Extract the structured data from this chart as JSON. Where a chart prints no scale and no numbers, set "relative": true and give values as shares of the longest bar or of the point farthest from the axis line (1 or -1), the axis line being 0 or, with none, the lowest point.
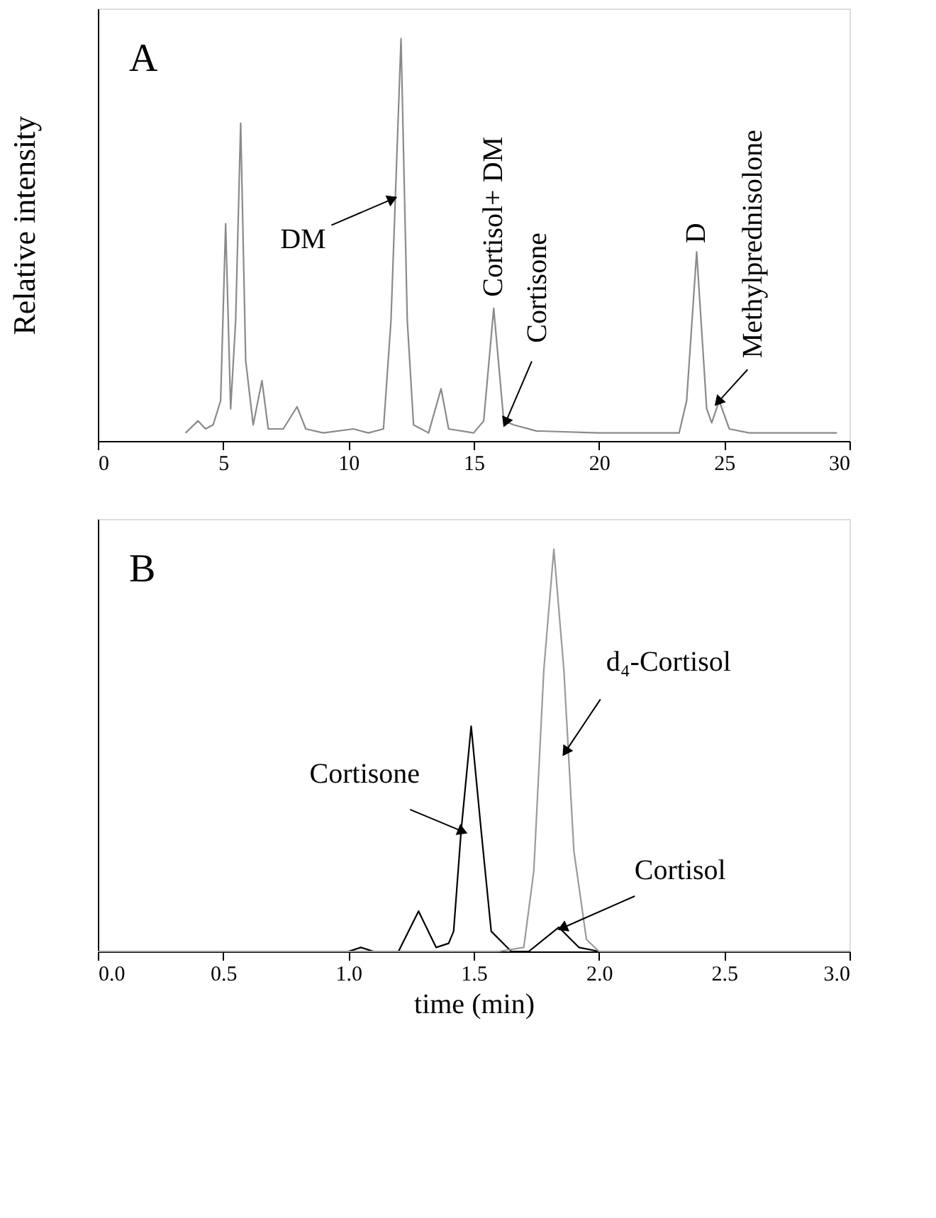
{
  "chart_data": [
    {
      "type": "line",
      "relative": true,
      "ylabel": "Relative intensity",
      "xlim": [
        0,
        30
      ],
      "xticks": [
        0,
        5,
        10,
        15,
        20,
        25,
        30
      ],
      "tick_labels": "x",
      "grid": false,
      "series": [
        {
          "color": "#8a8a8a",
          "x": [
            3.5,
            4.0,
            4.3,
            4.6,
            4.9,
            5.1,
            5.3,
            5.5,
            5.7,
            5.9,
            6.2,
            6.55,
            6.8,
            7.4,
            7.95,
            8.3,
            9.0,
            10.2,
            10.8,
            11.4,
            11.7,
            12.1,
            12.35,
            12.6,
            13.2,
            13.7,
            14.0,
            15.0,
            15.4,
            15.8,
            16.2,
            16.6,
            17.5,
            20.0,
            23.2,
            23.5,
            23.9,
            24.3,
            24.5,
            24.8,
            25.2,
            26.0,
            29.5
          ],
          "values": [
            0.02,
            0.05,
            0.03,
            0.04,
            0.1,
            0.54,
            0.08,
            0.3,
            0.79,
            0.2,
            0.04,
            0.15,
            0.03,
            0.03,
            0.085,
            0.03,
            0.02,
            0.03,
            0.02,
            0.03,
            0.3,
            1.0,
            0.3,
            0.04,
            0.02,
            0.13,
            0.03,
            0.02,
            0.05,
            0.33,
            0.05,
            0.04,
            0.025,
            0.02,
            0.02,
            0.1,
            0.47,
            0.08,
            0.045,
            0.1,
            0.03,
            0.02,
            0.02
          ]
        }
      ],
      "annotations": [
        "A",
        {
          "text": "DM",
          "x": 11.7,
          "y": 0.6
        },
        {
          "text": "Cortisol+ DM",
          "x": 15.8,
          "y": 0.33
        },
        {
          "text": "Cortisone",
          "x": 16.3,
          "y": 0.05
        },
        {
          "text": "D",
          "x": 23.9,
          "y": 0.47
        },
        {
          "text": "Methylprednisolone",
          "x": 24.8,
          "y": 0.1
        }
      ]
    },
    {
      "type": "line",
      "relative": true,
      "xlabel": "time (min)",
      "xlim": [
        0,
        3.0
      ],
      "xticks": [
        {
          "value": 0,
          "label": "0.0"
        },
        0.5,
        {
          "value": 1,
          "label": "1.0"
        },
        1.5,
        {
          "value": 2,
          "label": "2.0"
        },
        2.5,
        {
          "value": 3,
          "label": "3.0"
        }
      ],
      "tick_labels": "x",
      "grid": false,
      "series": [
        {
          "color": "#000000",
          "x": [
            0,
            1.0,
            1.05,
            1.1,
            1.2,
            1.28,
            1.35,
            1.4,
            1.42,
            1.45,
            1.49,
            1.53,
            1.57,
            1.65,
            1.72,
            1.84,
            1.92,
            2.0,
            3.0
          ],
          "values": [
            0,
            0,
            0.01,
            0,
            0,
            0.1,
            0.01,
            0.02,
            0.05,
            0.3,
            0.56,
            0.3,
            0.05,
            0,
            0,
            0.06,
            0.01,
            0,
            0
          ]
        },
        {
          "color": "#9a9a9a",
          "x": [
            0,
            1.6,
            1.7,
            1.74,
            1.78,
            1.82,
            1.86,
            1.9,
            1.95,
            2.0,
            3.0
          ],
          "values": [
            0,
            0,
            0.01,
            0.2,
            0.7,
            1.0,
            0.7,
            0.25,
            0.03,
            0,
            0
          ]
        }
      ],
      "annotations": [
        "B",
        {
          "text": "Cortisone",
          "x": 1.45,
          "y": 0.3
        },
        {
          "text": "d₄-Cortisol",
          "x": 1.87,
          "y": 0.5
        },
        {
          "text": "Cortisol",
          "x": 1.86,
          "y": 0.06
        }
      ]
    }
  ]
}
